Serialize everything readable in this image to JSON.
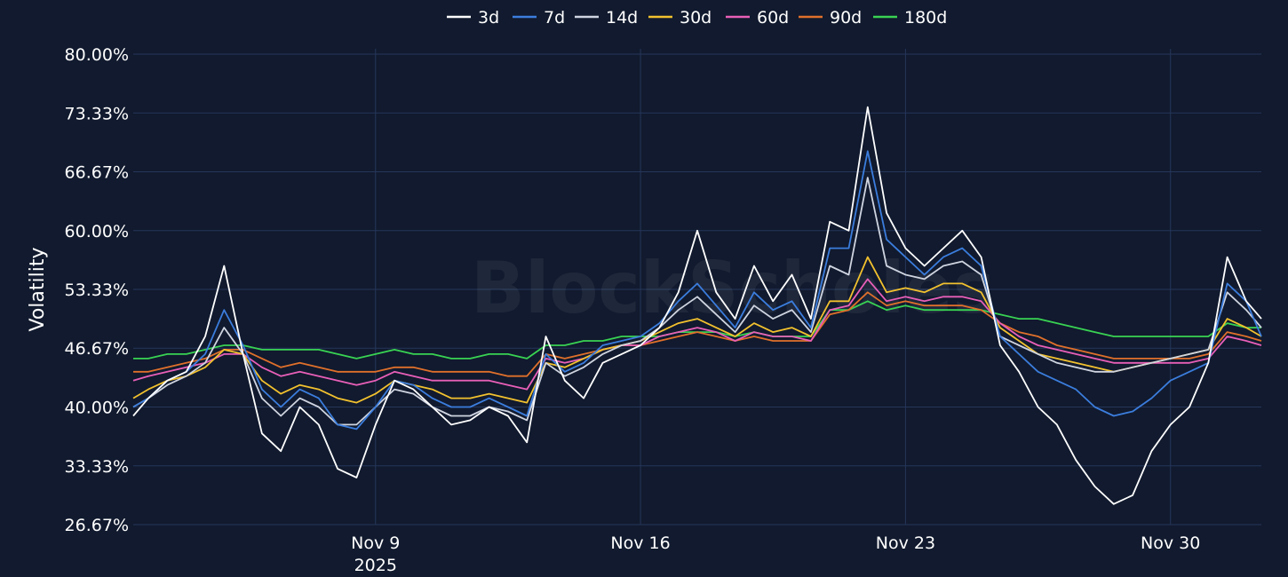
{
  "chart_data": {
    "type": "line",
    "watermark": "BlockScholes",
    "ylabel": "Volatility",
    "y_ticks": [
      "26.67%",
      "33.33%",
      "40.00%",
      "46.67%",
      "53.33%",
      "60.00%",
      "66.67%",
      "73.33%",
      "80.00%"
    ],
    "y_tick_values": [
      26.67,
      33.33,
      40.0,
      46.67,
      53.33,
      60.0,
      66.67,
      73.33,
      80.0
    ],
    "ylim": [
      26.67,
      80.0
    ],
    "x_ticks": [
      {
        "label": "Nov 9",
        "sublabel": "2025",
        "day": 9
      },
      {
        "label": "Nov 16",
        "sublabel": "",
        "day": 16
      },
      {
        "label": "Nov 23",
        "sublabel": "",
        "day": 23
      },
      {
        "label": "Nov 30",
        "sublabel": "",
        "day": 30
      }
    ],
    "xlim": [
      "2025-11-02T14:00",
      "2025-12-02T10:00"
    ],
    "grid": true,
    "legend_position": "top-center",
    "x_days": [
      2.6,
      3,
      3.5,
      4,
      4.5,
      5,
      5.5,
      6,
      6.5,
      7,
      7.5,
      8,
      8.5,
      9,
      9.5,
      10,
      10.5,
      11,
      11.5,
      12,
      12.5,
      13,
      13.5,
      14,
      14.5,
      15,
      15.5,
      16,
      16.5,
      17,
      17.5,
      18,
      18.5,
      19,
      19.5,
      20,
      20.5,
      21,
      21.5,
      22,
      22.5,
      23,
      23.5,
      24,
      24.5,
      25,
      25.5,
      26,
      26.5,
      27,
      27.5,
      28,
      28.5,
      29,
      29.5,
      30,
      30.5,
      31,
      31.5,
      32,
      32.4
    ],
    "series": [
      {
        "name": "3d",
        "color": "#ffffff",
        "values": [
          39.0,
          41.0,
          43.0,
          44.0,
          48.0,
          56.0,
          46.0,
          37.0,
          35.0,
          40.0,
          38.0,
          33.0,
          32.0,
          38.0,
          43.0,
          42.0,
          40.0,
          38.0,
          38.5,
          40.0,
          39.0,
          36.0,
          48.0,
          43.0,
          41.0,
          45.0,
          46.0,
          47.0,
          49.0,
          53.0,
          60.0,
          53.0,
          50.0,
          56.0,
          52.0,
          55.0,
          50.0,
          61.0,
          60.0,
          74.0,
          62.0,
          58.0,
          56.0,
          58.0,
          60.0,
          57.0,
          47.0,
          44.0,
          40.0,
          38.0,
          34.0,
          31.0,
          29.0,
          30.0,
          35.0,
          38.0,
          40.0,
          45.0,
          57.0,
          52.0,
          50.0
        ]
      },
      {
        "name": "7d",
        "color": "#3b7ddd",
        "values": [
          40.0,
          41.0,
          43.0,
          44.0,
          46.0,
          51.0,
          47.0,
          42.0,
          40.0,
          42.0,
          41.0,
          38.0,
          37.5,
          40.0,
          43.0,
          42.5,
          41.0,
          40.0,
          40.0,
          41.0,
          40.0,
          39.0,
          46.0,
          44.0,
          45.0,
          47.0,
          47.5,
          48.0,
          49.5,
          52.0,
          54.0,
          51.5,
          49.0,
          53.0,
          51.0,
          52.0,
          49.0,
          58.0,
          58.0,
          69.0,
          59.0,
          57.0,
          55.0,
          57.0,
          58.0,
          56.0,
          48.0,
          46.0,
          44.0,
          43.0,
          42.0,
          40.0,
          39.0,
          39.5,
          41.0,
          43.0,
          44.0,
          45.0,
          54.0,
          52.0,
          48.0
        ]
      },
      {
        "name": "14d",
        "color": "#cfd4e0",
        "values": [
          40.0,
          41.0,
          42.5,
          43.5,
          45.0,
          49.0,
          46.0,
          41.0,
          39.0,
          41.0,
          40.0,
          38.0,
          38.0,
          40.0,
          42.0,
          41.5,
          40.0,
          39.0,
          39.0,
          40.0,
          39.5,
          38.5,
          45.0,
          43.5,
          44.5,
          46.0,
          47.0,
          47.5,
          49.0,
          51.0,
          52.5,
          50.5,
          48.5,
          51.5,
          50.0,
          51.0,
          48.5,
          56.0,
          55.0,
          66.0,
          56.0,
          55.0,
          54.5,
          56.0,
          56.5,
          55.0,
          48.0,
          47.0,
          46.0,
          45.0,
          44.5,
          44.0,
          44.0,
          44.5,
          45.0,
          45.5,
          46.0,
          46.5,
          53.0,
          51.0,
          49.0
        ]
      },
      {
        "name": "30d",
        "color": "#f2c12e",
        "values": [
          41.0,
          42.0,
          43.0,
          43.5,
          44.5,
          46.5,
          46.0,
          43.0,
          41.5,
          42.5,
          42.0,
          41.0,
          40.5,
          41.5,
          43.0,
          42.5,
          42.0,
          41.0,
          41.0,
          41.5,
          41.0,
          40.5,
          45.0,
          44.5,
          45.5,
          46.5,
          47.0,
          47.5,
          48.5,
          49.5,
          50.0,
          49.0,
          48.0,
          49.5,
          48.5,
          49.0,
          48.0,
          52.0,
          52.0,
          57.0,
          53.0,
          53.5,
          53.0,
          54.0,
          54.0,
          53.0,
          49.0,
          47.5,
          46.0,
          45.5,
          45.0,
          44.5,
          44.0,
          44.5,
          45.0,
          45.5,
          46.0,
          46.5,
          50.0,
          49.0,
          48.0
        ]
      },
      {
        "name": "60d",
        "color": "#e85fb8",
        "values": [
          43.0,
          43.5,
          44.0,
          44.5,
          45.0,
          46.0,
          46.0,
          44.5,
          43.5,
          44.0,
          43.5,
          43.0,
          42.5,
          43.0,
          44.0,
          43.5,
          43.0,
          43.0,
          43.0,
          43.0,
          42.5,
          42.0,
          45.5,
          45.0,
          45.5,
          46.5,
          47.0,
          47.0,
          48.0,
          48.5,
          49.0,
          48.5,
          47.5,
          48.5,
          48.0,
          48.0,
          47.5,
          51.0,
          51.5,
          54.5,
          52.0,
          52.5,
          52.0,
          52.5,
          52.5,
          52.0,
          49.5,
          48.0,
          47.0,
          46.5,
          46.0,
          45.5,
          45.0,
          45.0,
          45.0,
          45.0,
          45.0,
          45.5,
          48.0,
          47.5,
          47.0
        ]
      },
      {
        "name": "90d",
        "color": "#e0702b",
        "values": [
          44.0,
          44.0,
          44.5,
          45.0,
          45.5,
          46.5,
          46.5,
          45.5,
          44.5,
          45.0,
          44.5,
          44.0,
          44.0,
          44.0,
          44.5,
          44.5,
          44.0,
          44.0,
          44.0,
          44.0,
          43.5,
          43.5,
          46.0,
          45.5,
          46.0,
          46.5,
          47.0,
          47.0,
          47.5,
          48.0,
          48.5,
          48.0,
          47.5,
          48.0,
          47.5,
          47.5,
          47.5,
          50.5,
          51.0,
          53.0,
          51.5,
          52.0,
          51.5,
          51.5,
          51.5,
          51.0,
          49.5,
          48.5,
          48.0,
          47.0,
          46.5,
          46.0,
          45.5,
          45.5,
          45.5,
          45.5,
          45.5,
          46.0,
          48.5,
          48.0,
          47.5
        ]
      },
      {
        "name": "180d",
        "color": "#39d353",
        "values": [
          45.5,
          45.5,
          46.0,
          46.0,
          46.5,
          47.0,
          47.0,
          46.5,
          46.5,
          46.5,
          46.5,
          46.0,
          45.5,
          46.0,
          46.5,
          46.0,
          46.0,
          45.5,
          45.5,
          46.0,
          46.0,
          45.5,
          47.0,
          47.0,
          47.5,
          47.5,
          48.0,
          48.0,
          48.0,
          48.5,
          48.5,
          48.5,
          48.0,
          48.5,
          48.0,
          48.0,
          48.0,
          51.0,
          51.0,
          52.0,
          51.0,
          51.5,
          51.0,
          51.0,
          51.0,
          51.0,
          50.5,
          50.0,
          50.0,
          49.5,
          49.0,
          48.5,
          48.0,
          48.0,
          48.0,
          48.0,
          48.0,
          48.0,
          49.5,
          49.0,
          49.0
        ]
      }
    ]
  }
}
